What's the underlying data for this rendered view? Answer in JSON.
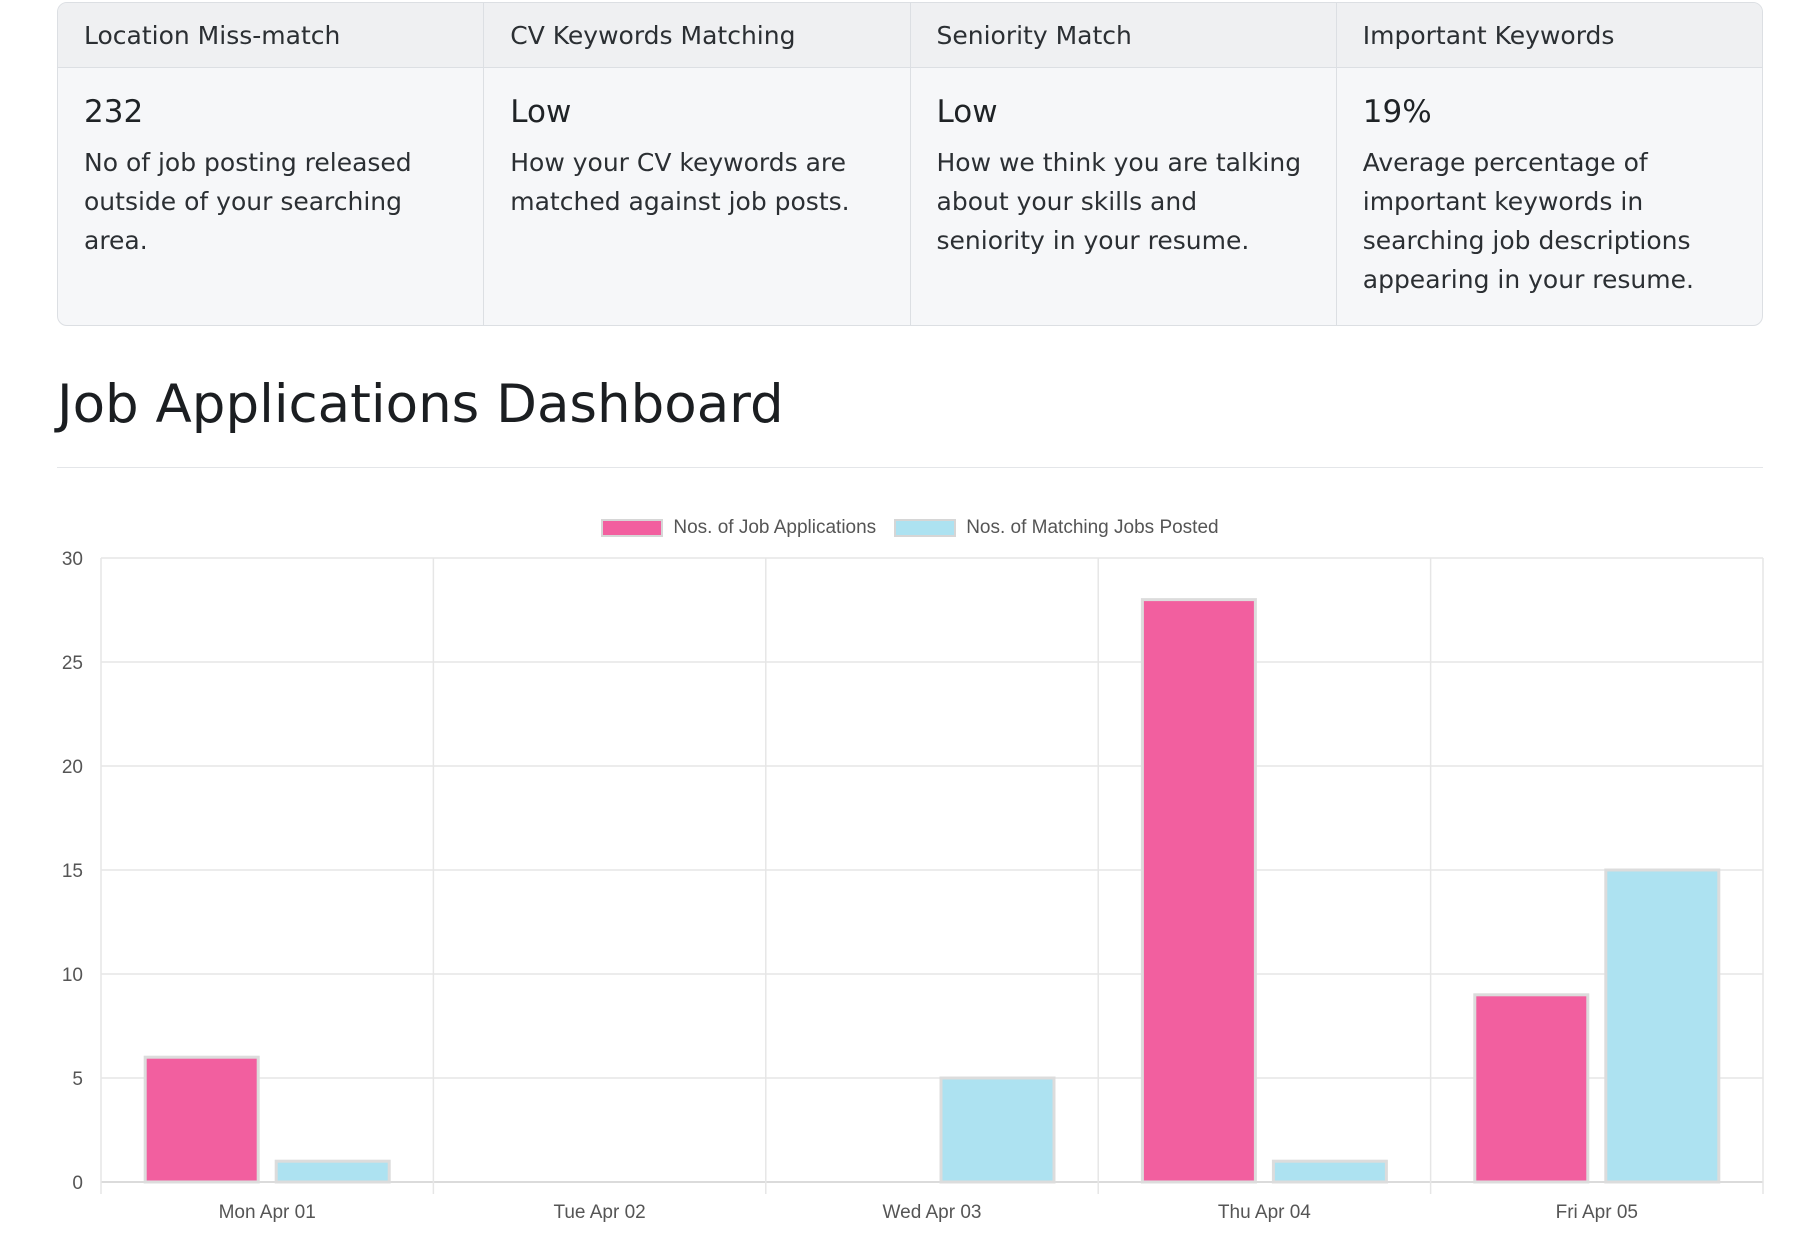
{
  "cards": [
    {
      "header": "Location Miss-match",
      "value": "232",
      "text": "No of job posting released outside of your searching area."
    },
    {
      "header": "CV Keywords Matching",
      "value": "Low",
      "text": "How your CV keywords are matched against job posts."
    },
    {
      "header": "Seniority Match",
      "value": "Low",
      "text": "How we think you are talking about your skills and seniority in your resume."
    },
    {
      "header": "Important Keywords",
      "value": "19%",
      "text": "Average percentage of important keywords in searching job descriptions appearing in your resume."
    }
  ],
  "dashboard": {
    "title": "Job Applications Dashboard"
  },
  "chart_data": {
    "type": "bar",
    "categories": [
      "Mon Apr 01",
      "Tue Apr 02",
      "Wed Apr 03",
      "Thu Apr 04",
      "Fri Apr 05"
    ],
    "series": [
      {
        "name": "Nos. of Job Applications",
        "values": [
          6,
          0,
          0,
          28,
          9
        ],
        "color": "#f25f9f"
      },
      {
        "name": "Nos. of Matching Jobs Posted",
        "values": [
          1,
          0,
          5,
          1,
          15
        ],
        "color": "#ade2f1"
      }
    ],
    "yticks": [
      0,
      5,
      10,
      15,
      20,
      25,
      30
    ],
    "ylim": [
      0,
      30
    ],
    "grid": true,
    "legend_position": "top-center"
  }
}
